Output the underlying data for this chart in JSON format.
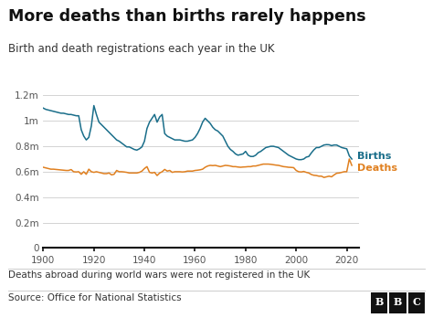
{
  "title": "More deaths than births rarely happens",
  "subtitle": "Birth and death registrations each year in the UK",
  "footnote": "Deaths abroad during world wars were not registered in the UK",
  "source": "Source: Office for National Statistics",
  "births_label": "Births",
  "deaths_label": "Deaths",
  "births_color": "#1a6e8a",
  "deaths_color": "#e08020",
  "background_color": "#ffffff",
  "title_fontsize": 12.5,
  "subtitle_fontsize": 8.5,
  "footnote_fontsize": 7.5,
  "source_fontsize": 7.5,
  "ylim": [
    0,
    1300000
  ],
  "xlim": [
    1900,
    2025
  ],
  "yticks": [
    0,
    200000,
    400000,
    600000,
    800000,
    1000000,
    1200000
  ],
  "ytick_labels": [
    "0",
    "0.2m",
    "0.4m",
    "0.6m",
    "0.8m",
    "1m",
    "1.2m"
  ],
  "xticks": [
    1900,
    1920,
    1940,
    1960,
    1980,
    2000,
    2020
  ],
  "years": [
    1900,
    1901,
    1902,
    1903,
    1904,
    1905,
    1906,
    1907,
    1908,
    1909,
    1910,
    1911,
    1912,
    1913,
    1914,
    1915,
    1916,
    1917,
    1918,
    1919,
    1920,
    1921,
    1922,
    1923,
    1924,
    1925,
    1926,
    1927,
    1928,
    1929,
    1930,
    1931,
    1932,
    1933,
    1934,
    1935,
    1936,
    1937,
    1938,
    1939,
    1940,
    1941,
    1942,
    1943,
    1944,
    1945,
    1946,
    1947,
    1948,
    1949,
    1950,
    1951,
    1952,
    1953,
    1954,
    1955,
    1956,
    1957,
    1958,
    1959,
    1960,
    1961,
    1962,
    1963,
    1964,
    1965,
    1966,
    1967,
    1968,
    1969,
    1970,
    1971,
    1972,
    1973,
    1974,
    1975,
    1976,
    1977,
    1978,
    1979,
    1980,
    1981,
    1982,
    1983,
    1984,
    1985,
    1986,
    1987,
    1988,
    1989,
    1990,
    1991,
    1992,
    1993,
    1994,
    1995,
    1996,
    1997,
    1998,
    1999,
    2000,
    2001,
    2002,
    2003,
    2004,
    2005,
    2006,
    2007,
    2008,
    2009,
    2010,
    2011,
    2012,
    2013,
    2014,
    2015,
    2016,
    2017,
    2018,
    2019,
    2020,
    2021,
    2022
  ],
  "births": [
    1100000,
    1090000,
    1085000,
    1080000,
    1075000,
    1070000,
    1065000,
    1060000,
    1060000,
    1055000,
    1050000,
    1050000,
    1045000,
    1040000,
    1040000,
    930000,
    880000,
    850000,
    870000,
    960000,
    1120000,
    1050000,
    990000,
    970000,
    950000,
    930000,
    910000,
    890000,
    870000,
    850000,
    840000,
    825000,
    810000,
    795000,
    795000,
    785000,
    775000,
    770000,
    780000,
    795000,
    840000,
    940000,
    990000,
    1020000,
    1050000,
    990000,
    1030000,
    1050000,
    900000,
    880000,
    870000,
    860000,
    850000,
    850000,
    850000,
    845000,
    840000,
    840000,
    845000,
    850000,
    870000,
    900000,
    940000,
    990000,
    1020000,
    1000000,
    980000,
    950000,
    930000,
    920000,
    900000,
    880000,
    840000,
    800000,
    775000,
    760000,
    740000,
    730000,
    735000,
    740000,
    760000,
    730000,
    720000,
    720000,
    730000,
    750000,
    760000,
    775000,
    790000,
    795000,
    800000,
    800000,
    795000,
    790000,
    775000,
    760000,
    745000,
    730000,
    720000,
    710000,
    700000,
    695000,
    695000,
    700000,
    715000,
    720000,
    748000,
    772000,
    790000,
    790000,
    800000,
    810000,
    813000,
    812000,
    805000,
    810000,
    810000,
    800000,
    790000,
    785000,
    780000,
    725000,
    700000
  ],
  "deaths": [
    635000,
    630000,
    625000,
    620000,
    620000,
    618000,
    616000,
    614000,
    612000,
    610000,
    610000,
    617000,
    600000,
    598000,
    600000,
    580000,
    600000,
    580000,
    620000,
    600000,
    595000,
    600000,
    595000,
    590000,
    585000,
    585000,
    590000,
    575000,
    580000,
    610000,
    600000,
    600000,
    598000,
    595000,
    590000,
    590000,
    590000,
    590000,
    595000,
    605000,
    625000,
    640000,
    595000,
    590000,
    595000,
    570000,
    590000,
    600000,
    618000,
    605000,
    610000,
    595000,
    600000,
    600000,
    600000,
    598000,
    600000,
    605000,
    605000,
    605000,
    610000,
    612000,
    615000,
    620000,
    635000,
    645000,
    650000,
    648000,
    650000,
    645000,
    640000,
    645000,
    650000,
    648000,
    645000,
    640000,
    640000,
    637000,
    635000,
    637000,
    638000,
    640000,
    640000,
    645000,
    645000,
    650000,
    655000,
    660000,
    660000,
    660000,
    658000,
    655000,
    652000,
    650000,
    645000,
    640000,
    638000,
    635000,
    634000,
    632000,
    610000,
    600000,
    598000,
    602000,
    595000,
    590000,
    578000,
    572000,
    570000,
    565000,
    565000,
    555000,
    560000,
    565000,
    560000,
    575000,
    588000,
    590000,
    595000,
    600000,
    600000,
    700000,
    650000
  ]
}
